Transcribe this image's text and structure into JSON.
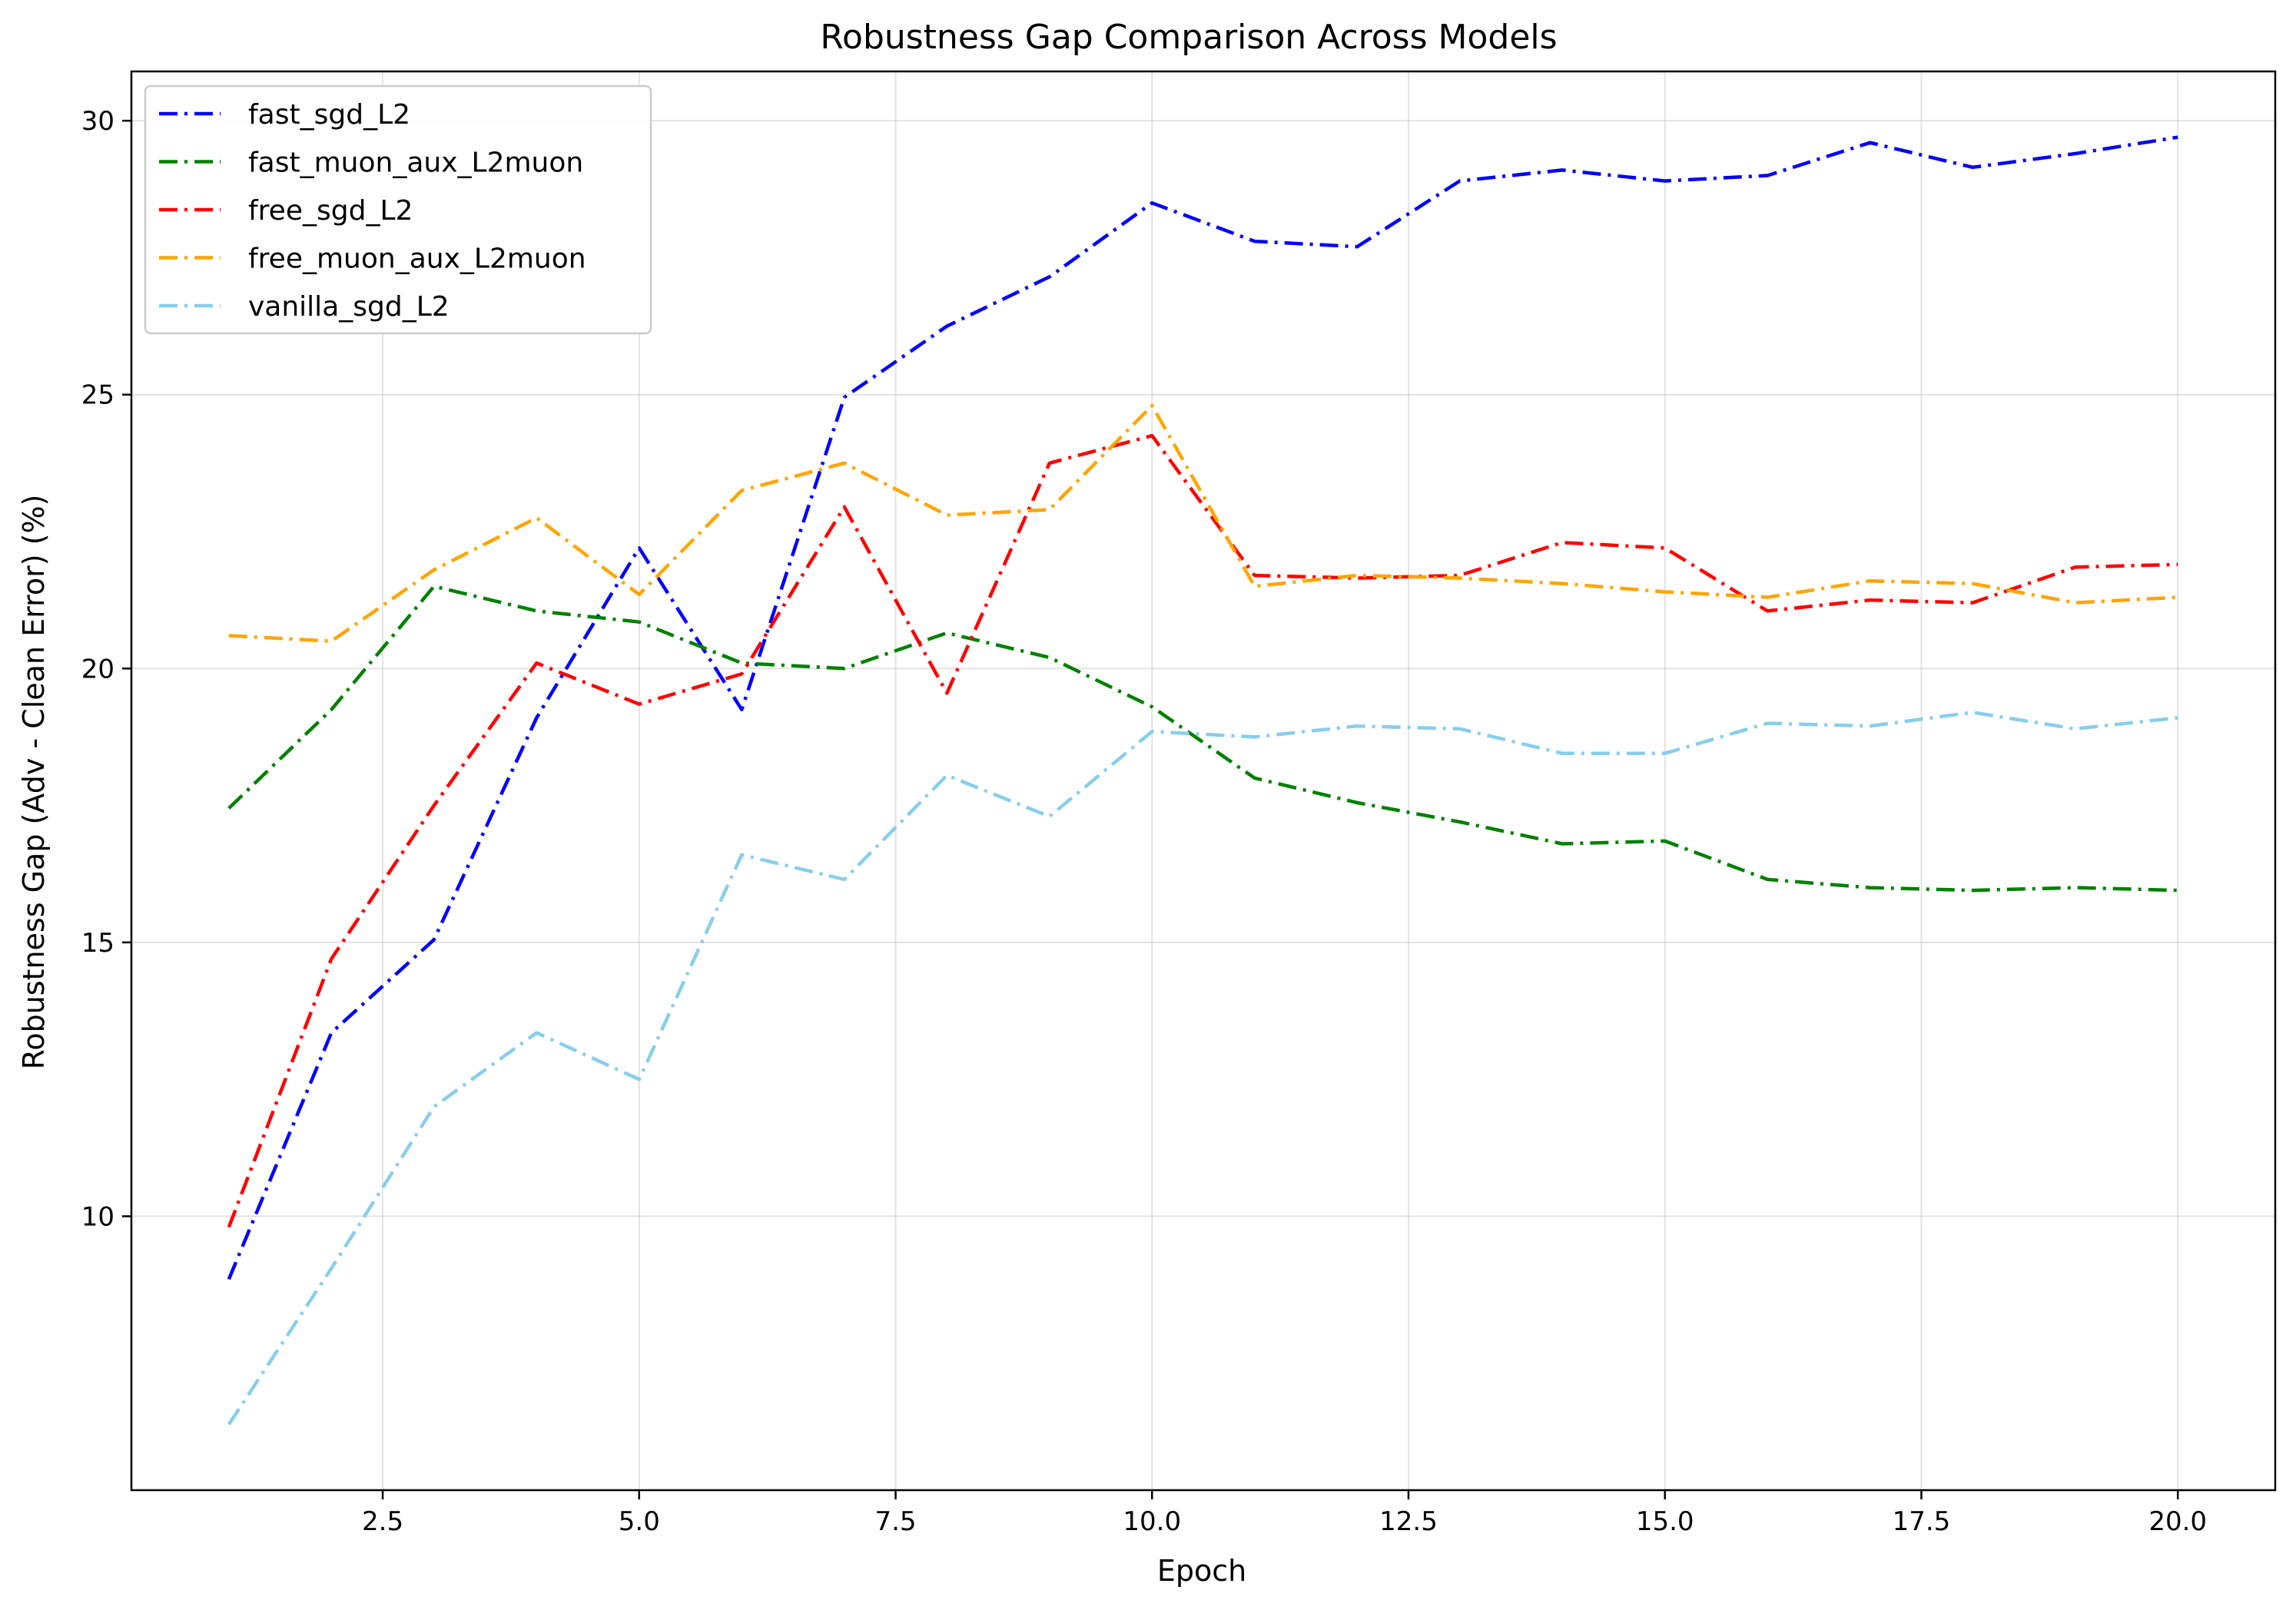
{
  "chart_data": {
    "type": "line",
    "title": "Robustness Gap Comparison Across Models",
    "xlabel": "Epoch",
    "ylabel": "Robustness Gap (Adv - Clean Error) (%)",
    "xlim": [
      0.05,
      20.95
    ],
    "ylim": [
      5.0,
      30.9
    ],
    "x_ticks": [
      2.5,
      5.0,
      7.5,
      10.0,
      12.5,
      15.0,
      17.5,
      20.0
    ],
    "x_tick_labels": [
      "2.5",
      "5.0",
      "7.5",
      "10.0",
      "12.5",
      "15.0",
      "17.5",
      "20.0"
    ],
    "y_ticks": [
      10,
      15,
      20,
      25,
      30
    ],
    "y_tick_labels": [
      "10",
      "15",
      "20",
      "25",
      "30"
    ],
    "grid": true,
    "legend_position": "top-left",
    "line_style": "dash-dot",
    "x": [
      1,
      2,
      3,
      4,
      5,
      6,
      7,
      8,
      9,
      10,
      11,
      12,
      13,
      14,
      15,
      16,
      17,
      18,
      19,
      20
    ],
    "series": [
      {
        "name": "fast_sgd_L2",
        "color": "#0000ff",
        "values": [
          8.85,
          13.35,
          15.05,
          19.1,
          22.2,
          19.25,
          24.95,
          26.25,
          27.15,
          28.5,
          27.8,
          27.7,
          28.9,
          29.1,
          28.9,
          29.0,
          29.6,
          29.15,
          29.4,
          29.7
        ]
      },
      {
        "name": "fast_muon_aux_L2muon",
        "color": "#008000",
        "values": [
          17.45,
          19.25,
          21.5,
          21.05,
          20.85,
          20.1,
          20.0,
          20.65,
          20.2,
          19.3,
          18.0,
          17.55,
          17.2,
          16.8,
          16.85,
          16.15,
          16.0,
          15.95,
          16.0,
          15.95
        ]
      },
      {
        "name": "free_sgd_L2",
        "color": "#ff0000",
        "values": [
          9.8,
          14.7,
          17.5,
          20.1,
          19.35,
          19.9,
          22.95,
          19.55,
          23.75,
          24.25,
          21.7,
          21.65,
          21.7,
          22.3,
          22.2,
          21.05,
          21.25,
          21.2,
          21.85,
          21.9
        ]
      },
      {
        "name": "free_muon_aux_L2muon",
        "color": "#ffa500",
        "values": [
          20.6,
          20.5,
          21.8,
          22.75,
          21.35,
          23.25,
          23.75,
          22.8,
          22.9,
          24.8,
          21.5,
          21.7,
          21.65,
          21.55,
          21.4,
          21.3,
          21.6,
          21.55,
          21.2,
          21.3
        ]
      },
      {
        "name": "vanilla_sgd_L2",
        "color": "#87ceeb",
        "values": [
          6.2,
          9.05,
          12.0,
          13.35,
          12.5,
          16.6,
          16.15,
          18.05,
          17.3,
          18.85,
          18.75,
          18.95,
          18.9,
          18.45,
          18.45,
          19.0,
          18.95,
          19.2,
          18.9,
          19.1
        ]
      }
    ]
  }
}
